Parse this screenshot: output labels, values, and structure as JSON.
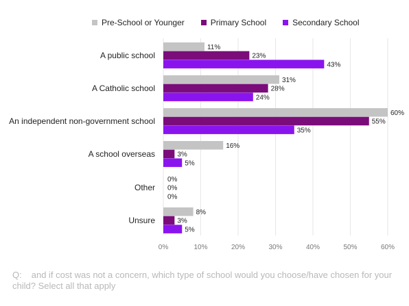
{
  "chart_data": {
    "type": "bar",
    "orientation": "horizontal",
    "categories": [
      "A public school",
      "A Catholic school",
      "An independent non-government school",
      "A school overseas",
      "Other",
      "Unsure"
    ],
    "series": [
      {
        "name": "Pre-School or Younger",
        "color": "#c4c4c4",
        "values": [
          11,
          31,
          60,
          16,
          0,
          8
        ]
      },
      {
        "name": "Primary School",
        "color": "#7b0d7b",
        "values": [
          23,
          28,
          55,
          3,
          0,
          3
        ]
      },
      {
        "name": "Secondary School",
        "color": "#8a14ee",
        "values": [
          43,
          24,
          35,
          5,
          0,
          5
        ]
      }
    ],
    "value_suffix": "%",
    "xlim": [
      0,
      60
    ],
    "xticks": [
      "0%",
      "10%",
      "20%",
      "30%",
      "40%",
      "50%",
      "60%"
    ],
    "grid": true,
    "legend": "top"
  },
  "question": {
    "prefix": "Q:",
    "text": "and if cost was not a concern, which type of school would you choose/have chosen for your child? Select all that apply"
  }
}
